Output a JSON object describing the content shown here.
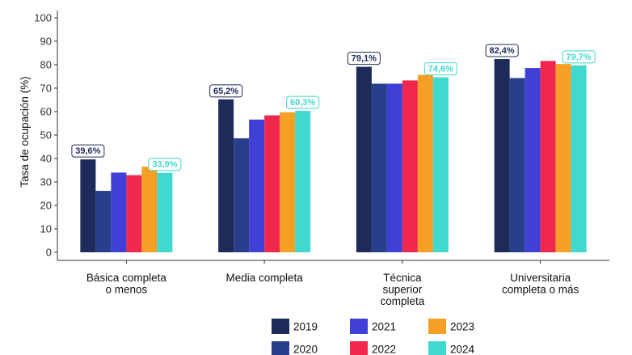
{
  "chart_data": {
    "type": "bar",
    "ylabel": "Tasa de ocupación (%)",
    "ylim": [
      0,
      100
    ],
    "y_ticks": [
      "0",
      "10",
      "20",
      "30",
      "40",
      "50",
      "60",
      "70",
      "80",
      "90",
      "100"
    ],
    "grid": false,
    "legend_position": "bottom",
    "categories": [
      [
        "Básica completa",
        "o menos"
      ],
      [
        "Media completa"
      ],
      [
        "Técnica",
        "superior",
        "completa"
      ],
      [
        "Universitaria",
        "completa o más"
      ]
    ],
    "series": [
      {
        "name": "2019",
        "color": "#1e2a5a",
        "values": [
          39.6,
          65.2,
          79.1,
          82.4
        ]
      },
      {
        "name": "2020",
        "color": "#283f8c",
        "values": [
          26.2,
          48.6,
          71.9,
          74.3
        ]
      },
      {
        "name": "2021",
        "color": "#4040d8",
        "values": [
          34.0,
          56.6,
          71.9,
          78.6
        ]
      },
      {
        "name": "2022",
        "color": "#f0284e",
        "values": [
          32.9,
          58.4,
          73.3,
          81.6
        ]
      },
      {
        "name": "2023",
        "color": "#f5a024",
        "values": [
          36.5,
          59.7,
          75.6,
          80.3
        ]
      },
      {
        "name": "2024",
        "color": "#40d8cf",
        "values": [
          33.9,
          60.3,
          74.6,
          79.7
        ]
      }
    ],
    "data_labels": [
      {
        "series": "2019",
        "texts": [
          "39,6%",
          "65,2%",
          "79,1%",
          "82,4%"
        ],
        "color": "#1e2a5a"
      },
      {
        "series": "2024",
        "texts": [
          "33,9%",
          "60,3%",
          "74,6%",
          "79,7%"
        ],
        "color": "#40d8cf"
      }
    ]
  }
}
